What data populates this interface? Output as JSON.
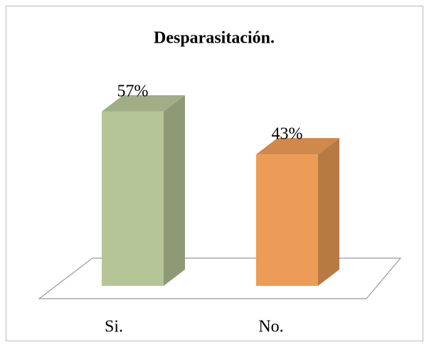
{
  "chart_data": {
    "type": "bar3d",
    "title": "Desparasitación.",
    "categories": [
      "Si.",
      "No."
    ],
    "values": [
      57,
      43
    ],
    "value_labels": [
      "57%",
      "43%"
    ],
    "colors": [
      "#b6c597",
      "#ec9c56"
    ]
  }
}
